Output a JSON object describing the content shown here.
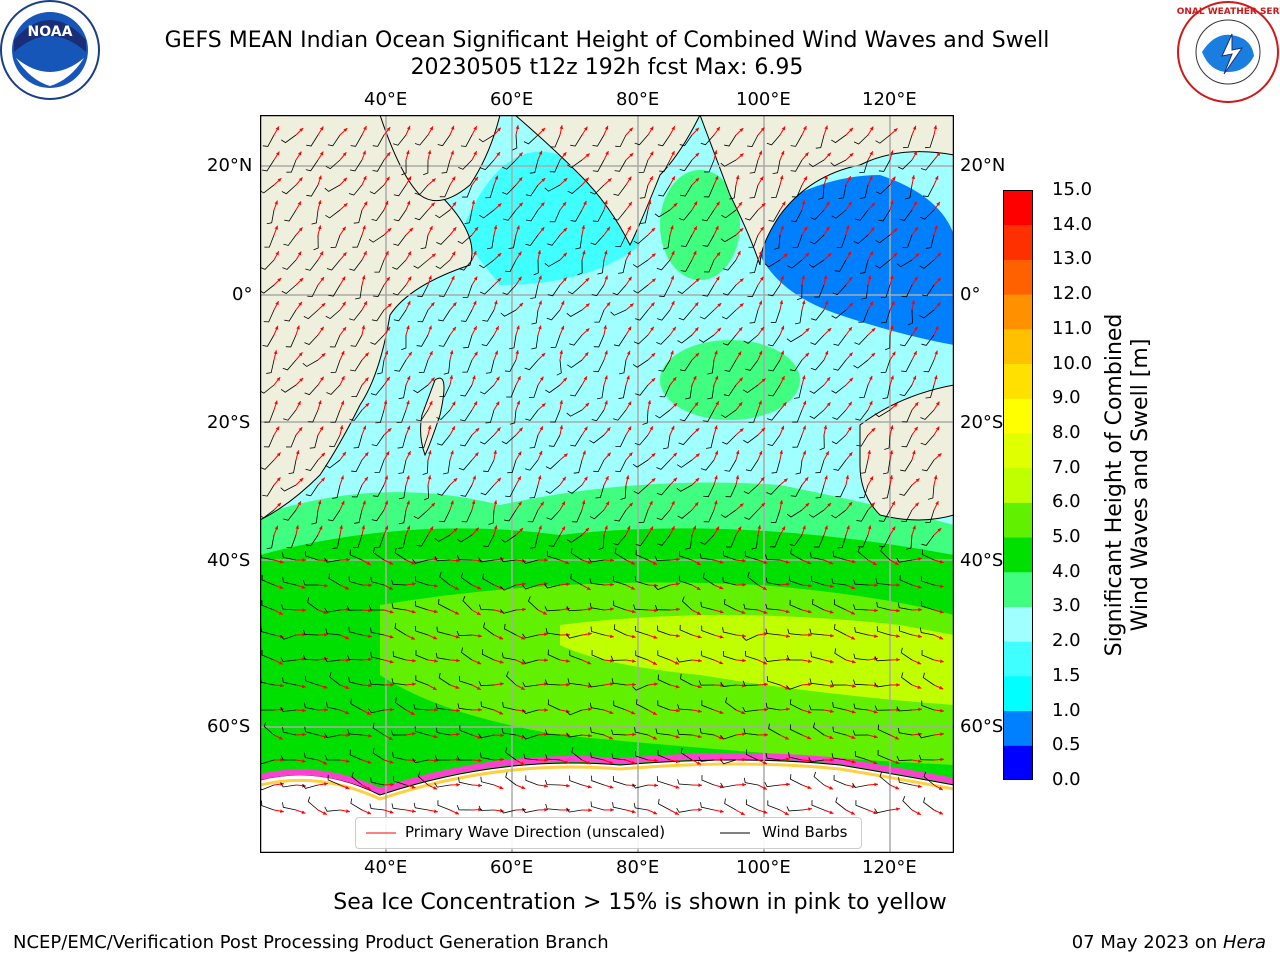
{
  "title_line1": "GEFS MEAN Indian Ocean Significant Height of Combined Wind Waves and Swell",
  "title_line2": "20230505 t12z 192h fcst   Max: 6.95",
  "lon_labels": [
    "40°E",
    "60°E",
    "80°E",
    "100°E",
    "120°E"
  ],
  "lat_labels": [
    "20°N",
    "0°",
    "20°S",
    "40°S",
    "60°S"
  ],
  "colorbar": {
    "ticks": [
      "0.0",
      "0.5",
      "1.0",
      "1.5",
      "2.0",
      "3.0",
      "4.0",
      "5.0",
      "6.0",
      "7.0",
      "8.0",
      "9.0",
      "10.0",
      "11.0",
      "12.0",
      "13.0",
      "14.0",
      "15.0"
    ],
    "colors": [
      "#0000ff",
      "#0080ff",
      "#00ffff",
      "#40ffff",
      "#a0ffff",
      "#40ff80",
      "#00e000",
      "#60f000",
      "#c0ff00",
      "#e0ff00",
      "#ffff00",
      "#ffe000",
      "#ffc000",
      "#ff9000",
      "#ff6000",
      "#ff3000",
      "#ff0000"
    ],
    "title_line1": "Significant Height of Combined",
    "title_line2": "Wind Waves and Swell [m]"
  },
  "legend": {
    "wave_dir_label": "Primary Wave Direction (unscaled)",
    "wind_barbs_label": "Wind Barbs"
  },
  "subtitle": "Sea Ice Concentration > 15% is shown in pink to yellow",
  "footer_left": "NCEP/EMC/Verification Post Processing Product Generation Branch",
  "footer_right_date": "07 May 2023 on ",
  "footer_right_host": "Hera",
  "logos": {
    "noaa_text": "NOAA",
    "nws_text": "NATIONAL WEATHER SERVICE"
  }
}
